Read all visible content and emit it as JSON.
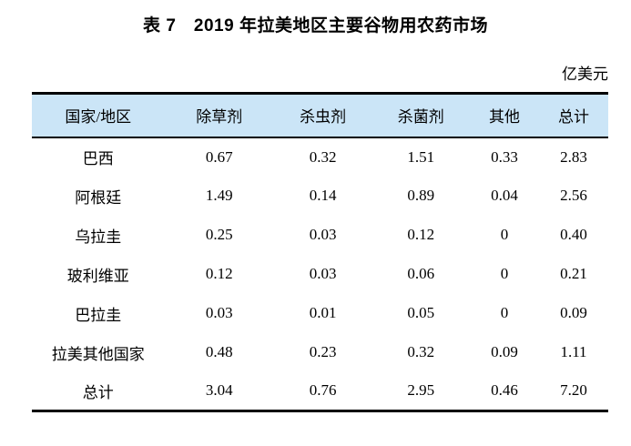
{
  "page": {
    "title": "表 7　2019 年拉美地区主要谷物用农药市场",
    "unit_label": "亿美元"
  },
  "table": {
    "columns": [
      "国家/地区",
      "除草剂",
      "杀虫剂",
      "杀菌剂",
      "其他",
      "总计"
    ],
    "rows": [
      {
        "region": "巴西",
        "values": [
          "0.67",
          "0.32",
          "1.51",
          "0.33",
          "2.83"
        ]
      },
      {
        "region": "阿根廷",
        "values": [
          "1.49",
          "0.14",
          "0.89",
          "0.04",
          "2.56"
        ]
      },
      {
        "region": "乌拉圭",
        "values": [
          "0.25",
          "0.03",
          "0.12",
          "0",
          "0.40"
        ]
      },
      {
        "region": "玻利维亚",
        "values": [
          "0.12",
          "0.03",
          "0.06",
          "0",
          "0.21"
        ]
      },
      {
        "region": "巴拉圭",
        "values": [
          "0.03",
          "0.01",
          "0.05",
          "0",
          "0.09"
        ]
      },
      {
        "region": "拉美其他国家",
        "values": [
          "0.48",
          "0.23",
          "0.32",
          "0.09",
          "1.11"
        ]
      },
      {
        "region": "总计",
        "values": [
          "3.04",
          "0.76",
          "2.95",
          "0.46",
          "7.20"
        ]
      }
    ]
  },
  "colors": {
    "header_bg": "#cbe5f7",
    "border": "#000000",
    "text": "#000000"
  },
  "chart_data": {
    "type": "table",
    "title": "表 7　2019 年拉美地区主要谷物用农药市场",
    "unit": "亿美元",
    "columns": [
      "国家/地区",
      "除草剂",
      "杀虫剂",
      "杀菌剂",
      "其他",
      "总计"
    ],
    "rows": [
      [
        "巴西",
        0.67,
        0.32,
        1.51,
        0.33,
        2.83
      ],
      [
        "阿根廷",
        1.49,
        0.14,
        0.89,
        0.04,
        2.56
      ],
      [
        "乌拉圭",
        0.25,
        0.03,
        0.12,
        0,
        0.4
      ],
      [
        "玻利维亚",
        0.12,
        0.03,
        0.06,
        0,
        0.21
      ],
      [
        "巴拉圭",
        0.03,
        0.01,
        0.05,
        0,
        0.09
      ],
      [
        "拉美其他国家",
        0.48,
        0.23,
        0.32,
        0.09,
        1.11
      ],
      [
        "总计",
        3.04,
        0.76,
        2.95,
        0.46,
        7.2
      ]
    ]
  }
}
